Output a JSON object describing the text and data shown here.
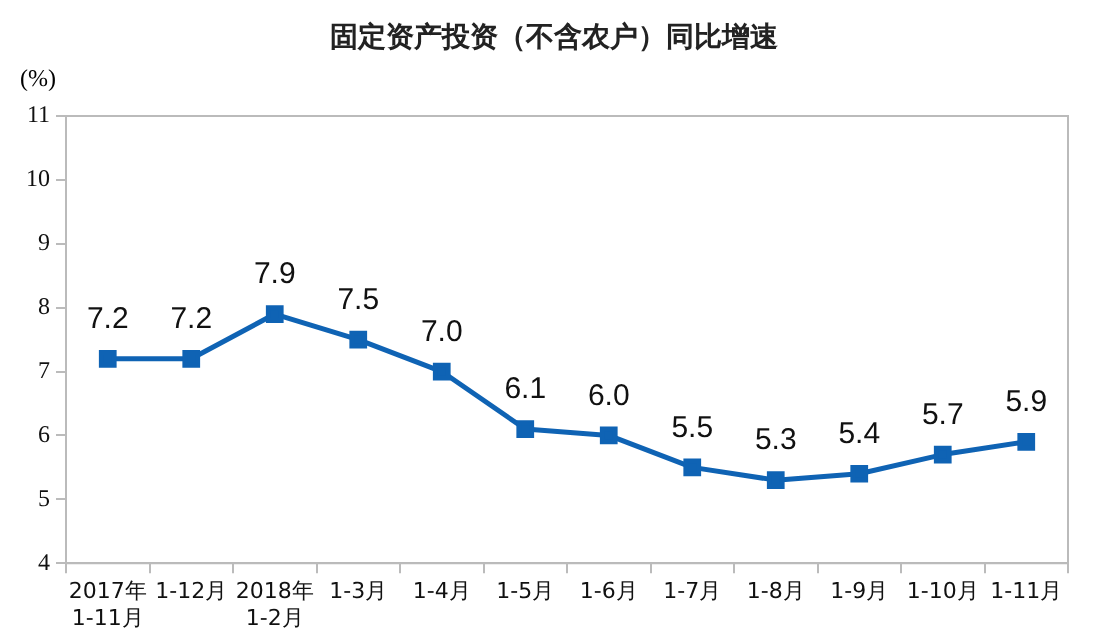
{
  "chart_data": {
    "type": "line",
    "title": "固定资产投资（不含农户）同比增速",
    "ylabel": "(%)",
    "categories": [
      "2017年\n1-11月",
      "1-12月",
      "2018年\n1-2月",
      "1-3月",
      "1-4月",
      "1-5月",
      "1-6月",
      "1-7月",
      "1-8月",
      "1-9月",
      "1-10月",
      "1-11月"
    ],
    "series": [
      {
        "color": "#0f63b4",
        "values": [
          7.2,
          7.2,
          7.9,
          7.5,
          7.0,
          6.1,
          6.0,
          5.5,
          5.3,
          5.4,
          5.7,
          5.9
        ],
        "value_labels": [
          "7.2",
          "7.2",
          "7.9",
          "7.5",
          "7.0",
          "6.1",
          "6.0",
          "5.5",
          "5.3",
          "5.4",
          "5.7",
          "5.9"
        ]
      }
    ],
    "ylim": [
      4,
      11
    ],
    "yticks": [
      4,
      5,
      6,
      7,
      8,
      9,
      10,
      11
    ],
    "grid": false,
    "legend": false,
    "marker": "square",
    "line_style": "solid"
  }
}
